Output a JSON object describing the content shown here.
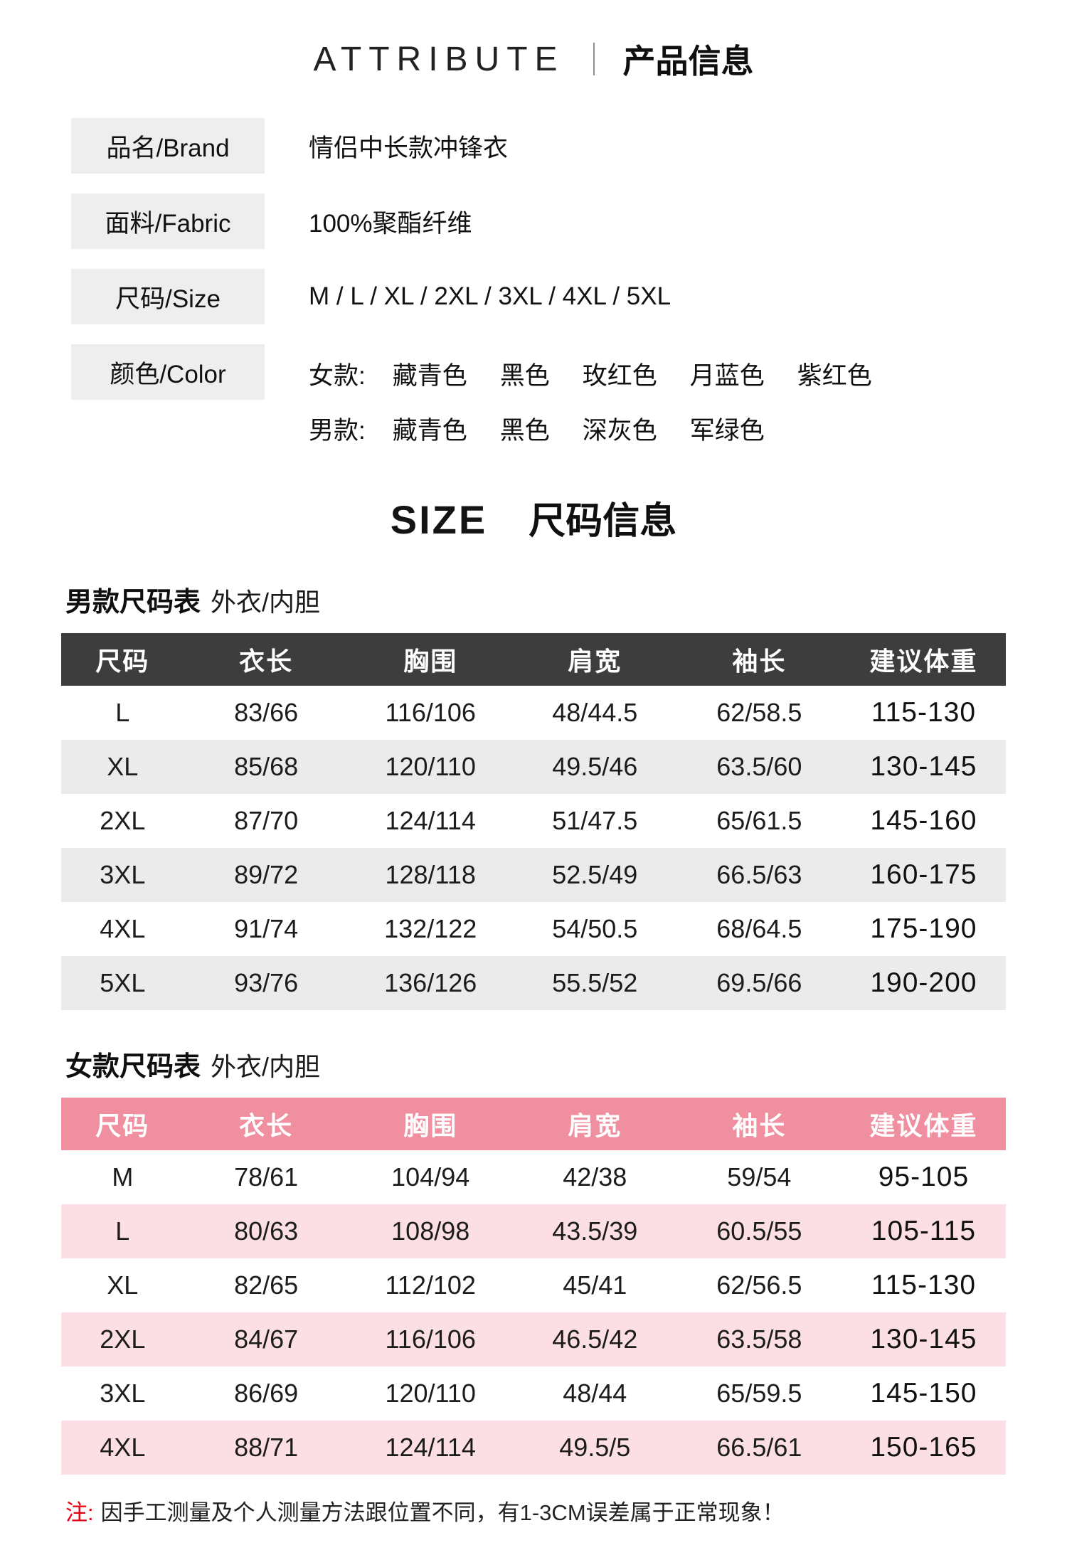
{
  "header": {
    "en": "ATTRIBUTE",
    "zh": "产品信息"
  },
  "attributes": {
    "brand": {
      "label": "品名/Brand",
      "value": "情侣中长款冲锋衣"
    },
    "fabric": {
      "label": "面料/Fabric",
      "value": "100%聚酯纤维"
    },
    "size": {
      "label": "尺码/Size",
      "value": "M / L / XL / 2XL / 3XL / 4XL / 5XL"
    },
    "color": {
      "label": "颜色/Color",
      "women": {
        "prefix": "女款:",
        "items": [
          "藏青色",
          "黑色",
          "玫红色",
          "月蓝色",
          "紫红色"
        ]
      },
      "men": {
        "prefix": "男款:",
        "items": [
          "藏青色",
          "黑色",
          "深灰色",
          "军绿色"
        ]
      }
    }
  },
  "size_section": {
    "en": "SIZE",
    "zh": "尺码信息"
  },
  "men_table": {
    "title": "男款尺码表",
    "subtitle": "外衣/内胆",
    "headers": [
      "尺码",
      "衣长",
      "胸围",
      "肩宽",
      "袖长",
      "建议体重"
    ],
    "rows": [
      [
        "L",
        "83/66",
        "116/106",
        "48/44.5",
        "62/58.5",
        "115-130"
      ],
      [
        "XL",
        "85/68",
        "120/110",
        "49.5/46",
        "63.5/60",
        "130-145"
      ],
      [
        "2XL",
        "87/70",
        "124/114",
        "51/47.5",
        "65/61.5",
        "145-160"
      ],
      [
        "3XL",
        "89/72",
        "128/118",
        "52.5/49",
        "66.5/63",
        "160-175"
      ],
      [
        "4XL",
        "91/74",
        "132/122",
        "54/50.5",
        "68/64.5",
        "175-190"
      ],
      [
        "5XL",
        "93/76",
        "136/126",
        "55.5/52",
        "69.5/66",
        "190-200"
      ]
    ]
  },
  "women_table": {
    "title": "女款尺码表",
    "subtitle": "外衣/内胆",
    "headers": [
      "尺码",
      "衣长",
      "胸围",
      "肩宽",
      "袖长",
      "建议体重"
    ],
    "rows": [
      [
        "M",
        "78/61",
        "104/94",
        "42/38",
        "59/54",
        "95-105"
      ],
      [
        "L",
        "80/63",
        "108/98",
        "43.5/39",
        "60.5/55",
        "105-115"
      ],
      [
        "XL",
        "82/65",
        "112/102",
        "45/41",
        "62/56.5",
        "115-130"
      ],
      [
        "2XL",
        "84/67",
        "116/106",
        "46.5/42",
        "63.5/58",
        "130-145"
      ],
      [
        "3XL",
        "86/69",
        "120/110",
        "48/44",
        "65/59.5",
        "145-150"
      ],
      [
        "4XL",
        "88/71",
        "124/114",
        "49.5/5",
        "66.5/61",
        "150-165"
      ]
    ]
  },
  "note": {
    "prefix": "注:",
    "text": "因手工测量及个人测量方法跟位置不同，有1-3CM误差属于正常现象！"
  },
  "colors": {
    "label_bg": "#eeeeee",
    "men_header": "#3d3d3d",
    "men_alt_row": "#ebebeb",
    "women_header": "#ef8f9f",
    "women_alt_row": "#fcdfe4",
    "note_red": "#e60012"
  }
}
